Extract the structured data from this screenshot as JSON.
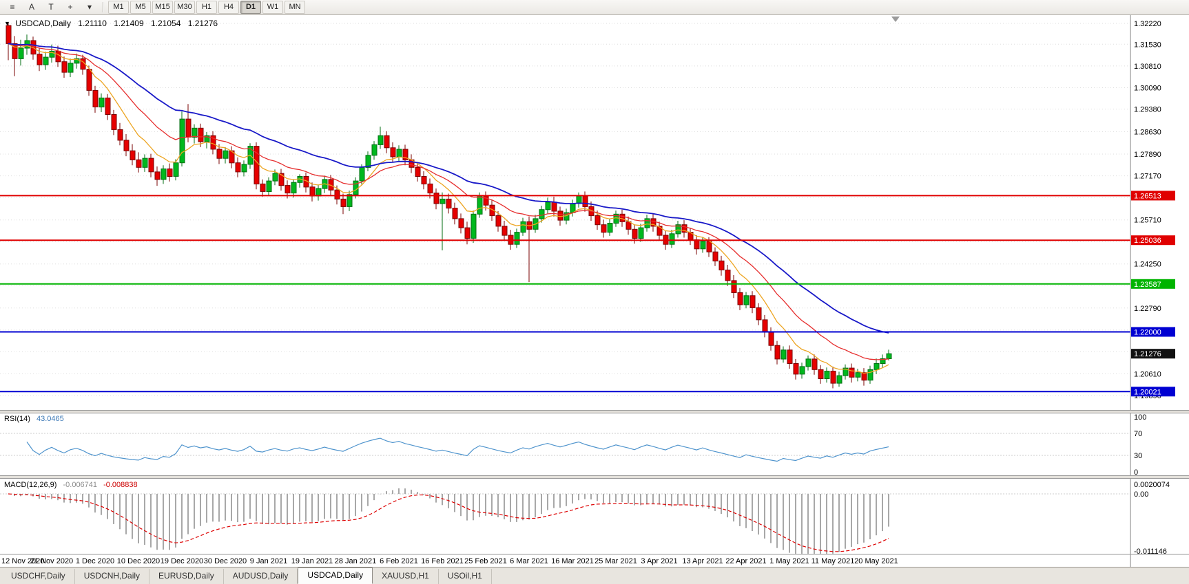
{
  "toolbar": {
    "tool_icons": [
      {
        "name": "menu-icon",
        "glyph": "≡"
      },
      {
        "name": "letter-a-tool-button",
        "glyph": "A"
      },
      {
        "name": "letter-t-tool-button",
        "glyph": "T"
      },
      {
        "name": "crosshair-icon",
        "glyph": "+"
      },
      {
        "name": "dropdown-arrow-icon",
        "glyph": "▾"
      }
    ],
    "timeframes": [
      "M1",
      "M5",
      "M15",
      "M30",
      "H1",
      "H4",
      "D1",
      "W1",
      "MN"
    ],
    "active_timeframe": "D1"
  },
  "chart_header": {
    "toggle_glyph": "▼",
    "symbol": "USDCAD,Daily",
    "open": "1.21110",
    "high": "1.21409",
    "low": "1.21054",
    "close": "1.21276"
  },
  "rsi_panel": {
    "name": "RSI(14)",
    "value": "43.0465",
    "axis_labels": [
      "100",
      "70",
      "30",
      "0"
    ]
  },
  "macd_panel": {
    "name": "MACD(12,26,9)",
    "value_main": "-0.006741",
    "value_signal": "-0.008838",
    "axis_labels": [
      "0.0020074",
      "0.00",
      "-0.011146"
    ]
  },
  "tabs": [
    {
      "label": "USDCHF,Daily",
      "active": false
    },
    {
      "label": "USDCNH,Daily",
      "active": false
    },
    {
      "label": "EURUSD,Daily",
      "active": false
    },
    {
      "label": "AUDUSD,Daily",
      "active": false
    },
    {
      "label": "USDCAD,Daily",
      "active": true
    },
    {
      "label": "XAUUSD,H1",
      "active": false
    },
    {
      "label": "USOil,H1",
      "active": false
    }
  ],
  "chart_data": {
    "type": "candlestick",
    "symbol": "USDCAD",
    "timeframe": "Daily",
    "price_axis_labels": [
      "1.32220",
      "1.31530",
      "1.30810",
      "1.30090",
      "1.29380",
      "1.28630",
      "1.27890",
      "1.27170",
      "1.26450",
      "1.25710",
      "1.24990",
      "1.24250",
      "1.23530",
      "1.22790",
      "1.22060",
      "1.21340",
      "1.20610",
      "1.19890"
    ],
    "x_labels": [
      "12 Nov 2020",
      "21 Nov 2020",
      "1 Dec 2020",
      "10 Dec 2020",
      "19 Dec 2020",
      "30 Dec 2020",
      "9 Jan 2021",
      "19 Jan 2021",
      "28 Jan 2021",
      "6 Feb 2021",
      "16 Feb 2021",
      "25 Feb 2021",
      "6 Mar 2021",
      "16 Mar 2021",
      "25 Mar 2021",
      "3 Apr 2021",
      "13 Apr 2021",
      "22 Apr 2021",
      "1 May 2021",
      "11 May 2021",
      "20 May 2021"
    ],
    "x_label_step": 7,
    "hlines": [
      {
        "value": 1.26513,
        "label": "1.26513",
        "color": "#e00000"
      },
      {
        "value": 1.25036,
        "label": "1.25036",
        "color": "#e00000"
      },
      {
        "value": 1.23587,
        "label": "1.23587",
        "color": "#00b400"
      },
      {
        "value": 1.22,
        "label": "1.22000",
        "color": "#0000d2"
      },
      {
        "value": 1.20021,
        "label": "1.20021",
        "color": "#0000d2"
      }
    ],
    "current_price": {
      "value": 1.21276,
      "label": "1.21276",
      "bg": "#101010"
    },
    "overlays": [
      {
        "name": "ma-fast-orange",
        "type": "ema",
        "period": 8,
        "color": "#eda522"
      },
      {
        "name": "ma-mid-red",
        "type": "ema",
        "period": 17,
        "color": "#e62e2e"
      },
      {
        "name": "ma-slow-blue",
        "type": "ema",
        "period": 34,
        "color": "#1919c8"
      }
    ],
    "indicators": [
      {
        "name": "RSI",
        "period": 14,
        "display_value": 43.0465,
        "color": "#4f94cd"
      },
      {
        "name": "MACD",
        "fast": 12,
        "slow": 26,
        "signal": 9,
        "display_main": -0.006741,
        "display_signal": -0.008838,
        "hist_color": "#a8a8a8",
        "signal_color": "#dd0000"
      }
    ],
    "candle_colors": {
      "bull": "#00b81e",
      "bull_border": "#006e12",
      "bear": "#e60000",
      "bear_border": "#7a0000"
    },
    "ohlc": [
      [
        1.3215,
        1.3222,
        1.31,
        1.3155
      ],
      [
        1.3155,
        1.318,
        1.3047,
        1.3105
      ],
      [
        1.3105,
        1.3168,
        1.3082,
        1.314
      ],
      [
        1.314,
        1.3185,
        1.3118,
        1.3165
      ],
      [
        1.3165,
        1.3178,
        1.3102,
        1.312
      ],
      [
        1.312,
        1.3142,
        1.3064,
        1.3085
      ],
      [
        1.3085,
        1.3128,
        1.3068,
        1.311
      ],
      [
        1.311,
        1.3152,
        1.3092,
        1.313
      ],
      [
        1.313,
        1.3148,
        1.3078,
        1.3095
      ],
      [
        1.3095,
        1.3112,
        1.3042,
        1.306
      ],
      [
        1.306,
        1.3105,
        1.3044,
        1.309
      ],
      [
        1.309,
        1.3122,
        1.3072,
        1.3105
      ],
      [
        1.3105,
        1.3118,
        1.3052,
        1.307
      ],
      [
        1.307,
        1.3082,
        1.2982,
        1.3
      ],
      [
        1.3,
        1.3015,
        1.2926,
        1.2945
      ],
      [
        1.2945,
        1.299,
        1.2928,
        1.2975
      ],
      [
        1.2975,
        1.2988,
        1.2902,
        1.292
      ],
      [
        1.292,
        1.2935,
        1.2852,
        1.287
      ],
      [
        1.287,
        1.2892,
        1.2818,
        1.2835
      ],
      [
        1.2835,
        1.2855,
        1.2782,
        1.28
      ],
      [
        1.28,
        1.2822,
        1.2752,
        1.277
      ],
      [
        1.277,
        1.2795,
        1.2728,
        1.2745
      ],
      [
        1.2745,
        1.2788,
        1.273,
        1.2775
      ],
      [
        1.2775,
        1.279,
        1.2712,
        1.273
      ],
      [
        1.273,
        1.2748,
        1.2684,
        1.2705
      ],
      [
        1.2705,
        1.2752,
        1.269,
        1.274
      ],
      [
        1.274,
        1.2758,
        1.2698,
        1.2715
      ],
      [
        1.2715,
        1.2772,
        1.2702,
        1.276
      ],
      [
        1.276,
        1.293,
        1.2748,
        1.2905
      ],
      [
        1.2905,
        1.2955,
        1.2828,
        1.2845
      ],
      [
        1.2845,
        1.2888,
        1.2824,
        1.2875
      ],
      [
        1.2875,
        1.289,
        1.2812,
        1.283
      ],
      [
        1.283,
        1.2862,
        1.2808,
        1.285
      ],
      [
        1.285,
        1.2865,
        1.2788,
        1.2805
      ],
      [
        1.2805,
        1.2822,
        1.2756,
        1.2775
      ],
      [
        1.2775,
        1.2812,
        1.2758,
        1.28
      ],
      [
        1.28,
        1.2815,
        1.2742,
        1.276
      ],
      [
        1.276,
        1.2778,
        1.2712,
        1.273
      ],
      [
        1.273,
        1.2768,
        1.2715,
        1.2755
      ],
      [
        1.2755,
        1.2825,
        1.274,
        1.2815
      ],
      [
        1.2815,
        1.2828,
        1.2672,
        1.269
      ],
      [
        1.269,
        1.2705,
        1.2648,
        1.2665
      ],
      [
        1.2665,
        1.2712,
        1.265,
        1.27
      ],
      [
        1.27,
        1.2738,
        1.2686,
        1.2725
      ],
      [
        1.2725,
        1.274,
        1.2668,
        1.2685
      ],
      [
        1.2685,
        1.2702,
        1.2642,
        1.266
      ],
      [
        1.266,
        1.2705,
        1.2645,
        1.2695
      ],
      [
        1.2695,
        1.2722,
        1.2678,
        1.2715
      ],
      [
        1.2715,
        1.2728,
        1.2662,
        1.268
      ],
      [
        1.268,
        1.2695,
        1.2632,
        1.265
      ],
      [
        1.265,
        1.2688,
        1.2635,
        1.2675
      ],
      [
        1.2675,
        1.2718,
        1.266,
        1.2705
      ],
      [
        1.2705,
        1.272,
        1.2652,
        1.267
      ],
      [
        1.267,
        1.2685,
        1.2622,
        1.264
      ],
      [
        1.264,
        1.2658,
        1.259,
        1.2615
      ],
      [
        1.2615,
        1.2668,
        1.26,
        1.2655
      ],
      [
        1.2655,
        1.2712,
        1.2642,
        1.27
      ],
      [
        1.27,
        1.2755,
        1.2688,
        1.2745
      ],
      [
        1.2745,
        1.2798,
        1.2732,
        1.2785
      ],
      [
        1.2785,
        1.2832,
        1.277,
        1.282
      ],
      [
        1.282,
        1.288,
        1.2806,
        1.285
      ],
      [
        1.285,
        1.2865,
        1.2792,
        1.281
      ],
      [
        1.281,
        1.2828,
        1.2762,
        1.278
      ],
      [
        1.278,
        1.2818,
        1.2766,
        1.2805
      ],
      [
        1.2805,
        1.282,
        1.2752,
        1.277
      ],
      [
        1.277,
        1.2788,
        1.2726,
        1.2745
      ],
      [
        1.2745,
        1.2762,
        1.2698,
        1.2715
      ],
      [
        1.2715,
        1.2732,
        1.2672,
        1.269
      ],
      [
        1.269,
        1.2708,
        1.2642,
        1.266
      ],
      [
        1.266,
        1.2675,
        1.2606,
        1.2625
      ],
      [
        1.2625,
        1.2662,
        1.247,
        1.264
      ],
      [
        1.264,
        1.2658,
        1.2592,
        1.261
      ],
      [
        1.261,
        1.2628,
        1.2556,
        1.2575
      ],
      [
        1.2575,
        1.2592,
        1.2526,
        1.2545
      ],
      [
        1.2545,
        1.2565,
        1.249,
        1.251
      ],
      [
        1.251,
        1.2602,
        1.2495,
        1.259
      ],
      [
        1.259,
        1.2662,
        1.2578,
        1.265
      ],
      [
        1.265,
        1.2665,
        1.2602,
        1.262
      ],
      [
        1.262,
        1.2638,
        1.2568,
        1.2585
      ],
      [
        1.2585,
        1.26,
        1.2532,
        1.255
      ],
      [
        1.255,
        1.2568,
        1.2502,
        1.252
      ],
      [
        1.252,
        1.2538,
        1.2472,
        1.249
      ],
      [
        1.249,
        1.2542,
        1.2478,
        1.253
      ],
      [
        1.253,
        1.2578,
        1.2518,
        1.2565
      ],
      [
        1.2565,
        1.2582,
        1.2365,
        1.254
      ],
      [
        1.254,
        1.2588,
        1.2528,
        1.2575
      ],
      [
        1.2575,
        1.2618,
        1.2562,
        1.2605
      ],
      [
        1.2605,
        1.2645,
        1.2592,
        1.263
      ],
      [
        1.263,
        1.2648,
        1.2582,
        1.26
      ],
      [
        1.26,
        1.2615,
        1.2552,
        1.257
      ],
      [
        1.257,
        1.2608,
        1.2556,
        1.2595
      ],
      [
        1.2595,
        1.2638,
        1.2582,
        1.2625
      ],
      [
        1.2625,
        1.2662,
        1.2612,
        1.265
      ],
      [
        1.265,
        1.2665,
        1.2598,
        1.2615
      ],
      [
        1.2615,
        1.2632,
        1.2568,
        1.2585
      ],
      [
        1.2585,
        1.2602,
        1.2538,
        1.2555
      ],
      [
        1.2555,
        1.2572,
        1.2512,
        1.253
      ],
      [
        1.253,
        1.2575,
        1.2518,
        1.256
      ],
      [
        1.256,
        1.2602,
        1.2548,
        1.259
      ],
      [
        1.259,
        1.2605,
        1.2548,
        1.2565
      ],
      [
        1.2565,
        1.2582,
        1.2522,
        1.254
      ],
      [
        1.254,
        1.2556,
        1.2492,
        1.251
      ],
      [
        1.251,
        1.2558,
        1.2498,
        1.2545
      ],
      [
        1.2545,
        1.2588,
        1.2532,
        1.2575
      ],
      [
        1.2575,
        1.259,
        1.2532,
        1.255
      ],
      [
        1.255,
        1.2565,
        1.2502,
        1.252
      ],
      [
        1.252,
        1.2535,
        1.2472,
        1.249
      ],
      [
        1.249,
        1.2538,
        1.2478,
        1.2525
      ],
      [
        1.2525,
        1.2568,
        1.2512,
        1.2555
      ],
      [
        1.2555,
        1.257,
        1.2512,
        1.253
      ],
      [
        1.253,
        1.2545,
        1.2488,
        1.2505
      ],
      [
        1.2505,
        1.252,
        1.2456,
        1.2475
      ],
      [
        1.2475,
        1.2512,
        1.2462,
        1.25
      ],
      [
        1.25,
        1.2514,
        1.2448,
        1.2465
      ],
      [
        1.2465,
        1.248,
        1.2418,
        1.2435
      ],
      [
        1.2435,
        1.2452,
        1.2386,
        1.2405
      ],
      [
        1.2405,
        1.2422,
        1.2352,
        1.237
      ],
      [
        1.237,
        1.2388,
        1.2312,
        1.233
      ],
      [
        1.233,
        1.2345,
        1.2272,
        1.229
      ],
      [
        1.229,
        1.2332,
        1.2278,
        1.232
      ],
      [
        1.232,
        1.2335,
        1.2262,
        1.228
      ],
      [
        1.228,
        1.2295,
        1.2222,
        1.224
      ],
      [
        1.224,
        1.2256,
        1.2182,
        1.22
      ],
      [
        1.22,
        1.2215,
        1.2138,
        1.2155
      ],
      [
        1.2155,
        1.217,
        1.2092,
        1.211
      ],
      [
        1.211,
        1.2152,
        1.2098,
        1.214
      ],
      [
        1.214,
        1.2155,
        1.2078,
        1.2095
      ],
      [
        1.2095,
        1.211,
        1.2042,
        1.206
      ],
      [
        1.206,
        1.2098,
        1.2045,
        1.2085
      ],
      [
        1.2085,
        1.2122,
        1.2072,
        1.211
      ],
      [
        1.211,
        1.2125,
        1.2058,
        1.2075
      ],
      [
        1.2075,
        1.209,
        1.2028,
        1.2045
      ],
      [
        1.2045,
        1.2082,
        1.2032,
        1.207
      ],
      [
        1.207,
        1.2085,
        1.2013,
        1.203
      ],
      [
        1.203,
        1.2068,
        1.2018,
        1.2055
      ],
      [
        1.2055,
        1.2092,
        1.2042,
        1.208
      ],
      [
        1.208,
        1.2095,
        1.2032,
        1.205
      ],
      [
        1.205,
        1.2078,
        1.2036,
        1.2065
      ],
      [
        1.2065,
        1.208,
        1.2022,
        1.204
      ],
      [
        1.204,
        1.2088,
        1.2028,
        1.2075
      ],
      [
        1.2075,
        1.2112,
        1.206,
        1.2095
      ],
      [
        1.2095,
        1.2125,
        1.2082,
        1.2111
      ],
      [
        1.2111,
        1.21409,
        1.21054,
        1.21276
      ]
    ]
  }
}
